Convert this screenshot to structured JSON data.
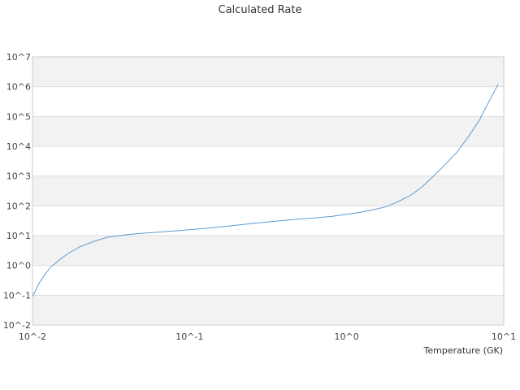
{
  "chart_data": {
    "type": "line",
    "title": "Calculated Rate",
    "xlabel": "Temperature (GK)",
    "ylabel": "",
    "x_scale": "log",
    "y_scale": "log",
    "xlim": [
      0.01,
      10
    ],
    "ylim": [
      0.01,
      10000000
    ],
    "grid": "alternating horizontal bands",
    "legend": "none",
    "x_ticks": [
      {
        "value": 0.01,
        "label": "10^-2"
      },
      {
        "value": 0.1,
        "label": "10^-1"
      },
      {
        "value": 1,
        "label": "10^0"
      },
      {
        "value": 10,
        "label": "10^1"
      }
    ],
    "y_ticks": [
      {
        "value": 0.01,
        "label": "10^-2"
      },
      {
        "value": 0.1,
        "label": "10^-1"
      },
      {
        "value": 1,
        "label": "10^0"
      },
      {
        "value": 10,
        "label": "10^1"
      },
      {
        "value": 100,
        "label": "10^2"
      },
      {
        "value": 1000,
        "label": "10^3"
      },
      {
        "value": 10000,
        "label": "10^4"
      },
      {
        "value": 100000,
        "label": "10^5"
      },
      {
        "value": 1000000,
        "label": "10^6"
      },
      {
        "value": 10000000,
        "label": "10^7"
      }
    ],
    "series": [
      {
        "color": "#5b9bd5",
        "points": [
          [
            0.01,
            0.09
          ],
          [
            0.011,
            0.25
          ],
          [
            0.012,
            0.5
          ],
          [
            0.013,
            0.85
          ],
          [
            0.015,
            1.6
          ],
          [
            0.017,
            2.6
          ],
          [
            0.02,
            4.2
          ],
          [
            0.025,
            6.6
          ],
          [
            0.03,
            8.8
          ],
          [
            0.04,
            10.8
          ],
          [
            0.05,
            12.0
          ],
          [
            0.06,
            12.8
          ],
          [
            0.08,
            14.3
          ],
          [
            0.1,
            15.7
          ],
          [
            0.13,
            17.8
          ],
          [
            0.16,
            19.8
          ],
          [
            0.2,
            22.5
          ],
          [
            0.25,
            25.5
          ],
          [
            0.3,
            28.0
          ],
          [
            0.4,
            32.5
          ],
          [
            0.5,
            36.0
          ],
          [
            0.6,
            38.5
          ],
          [
            0.8,
            44.0
          ],
          [
            1.0,
            52.0
          ],
          [
            1.2,
            60.0
          ],
          [
            1.5,
            75.0
          ],
          [
            1.8,
            95.0
          ],
          [
            2.0,
            120.0
          ],
          [
            2.5,
            210.0
          ],
          [
            3.0,
            420.0
          ],
          [
            3.5,
            900.0
          ],
          [
            4.0,
            1800.0
          ],
          [
            5.0,
            6000.0
          ],
          [
            6.0,
            22000.0
          ],
          [
            7.0,
            75000.0
          ],
          [
            8.0,
            300000.0
          ],
          [
            9.2,
            1200000.0
          ]
        ]
      }
    ]
  }
}
